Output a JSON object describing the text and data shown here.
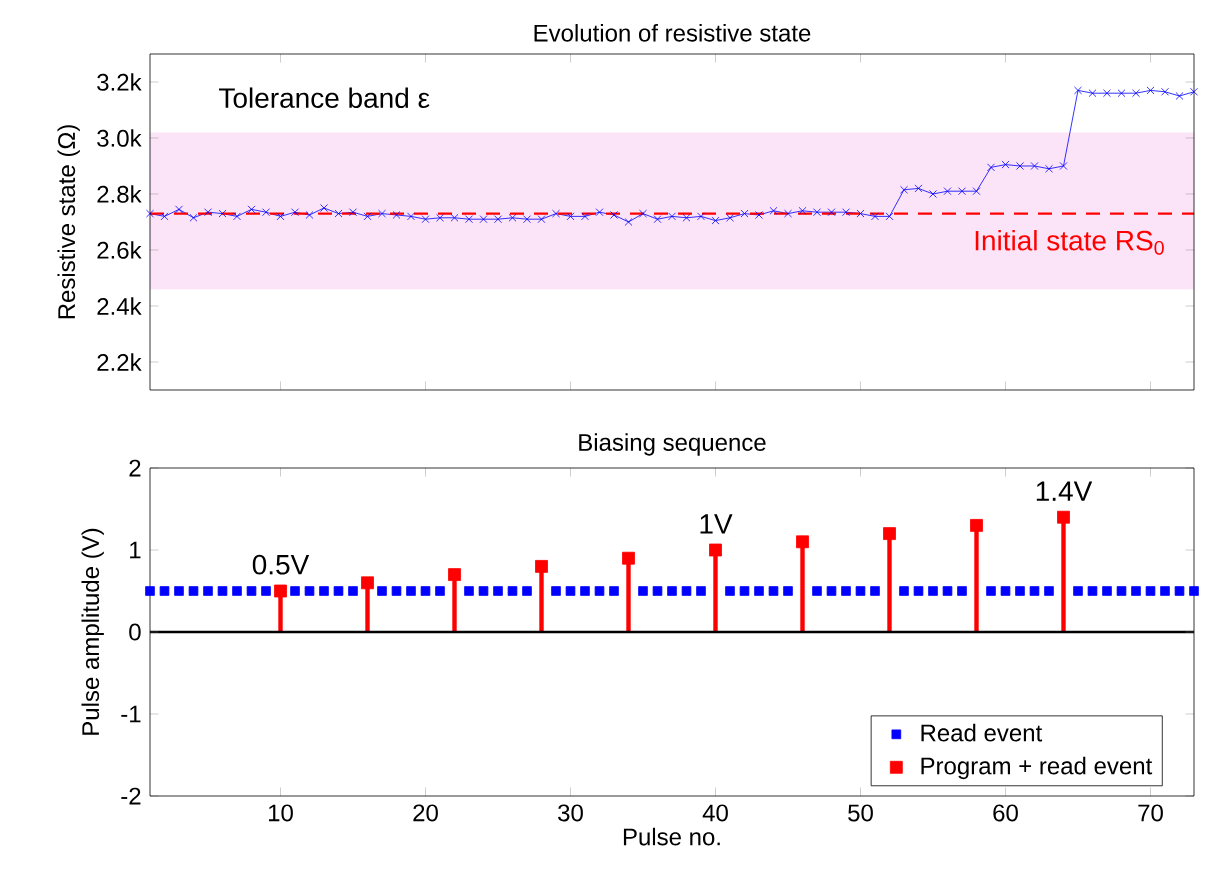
{
  "chart_data": [
    {
      "type": "line",
      "title": "Evolution of resistive state",
      "ylabel": "Resistive state (Ω)",
      "marker": "cross",
      "tick_labels": "y",
      "x": [
        1,
        2,
        3,
        4,
        5,
        6,
        7,
        8,
        9,
        10,
        11,
        12,
        13,
        14,
        15,
        16,
        17,
        18,
        19,
        20,
        21,
        22,
        23,
        24,
        25,
        26,
        27,
        28,
        29,
        30,
        31,
        32,
        33,
        34,
        35,
        36,
        37,
        38,
        39,
        40,
        41,
        42,
        43,
        44,
        45,
        46,
        47,
        48,
        49,
        50,
        51,
        52,
        53,
        54,
        55,
        56,
        57,
        58,
        59,
        60,
        61,
        62,
        63,
        64,
        65,
        66,
        67,
        68,
        69,
        70,
        71,
        72,
        73
      ],
      "series": [
        {
          "color": "#0000ff",
          "values": [
            2730,
            2720,
            2745,
            2715,
            2735,
            2730,
            2720,
            2745,
            2735,
            2720,
            2735,
            2725,
            2750,
            2730,
            2735,
            2720,
            2730,
            2725,
            2720,
            2710,
            2715,
            2715,
            2710,
            2710,
            2710,
            2715,
            2710,
            2710,
            2730,
            2720,
            2720,
            2735,
            2725,
            2700,
            2730,
            2710,
            2720,
            2715,
            2720,
            2705,
            2715,
            2730,
            2725,
            2740,
            2730,
            2740,
            2735,
            2735,
            2735,
            2730,
            2720,
            2720,
            2815,
            2820,
            2800,
            2810,
            2810,
            2810,
            2895,
            2905,
            2900,
            2900,
            2890,
            2900,
            3170,
            3160,
            3160,
            3160,
            3160,
            3170,
            3165,
            3150,
            3165
          ]
        }
      ],
      "xlim": [
        1,
        73
      ],
      "xticks": [
        10,
        20,
        30,
        40,
        50,
        60,
        70
      ],
      "ylim": [
        2100,
        3300
      ],
      "yticks": [
        {
          "value": 2200,
          "label": "2.2k"
        },
        {
          "value": 2400,
          "label": "2.4k"
        },
        {
          "value": 2600,
          "label": "2.6k"
        },
        {
          "value": 2800,
          "label": "2.8k"
        },
        {
          "value": 3000,
          "label": "3.0k"
        },
        {
          "value": 3200,
          "label": "3.2k"
        }
      ],
      "bands": [
        {
          "axis": "y",
          "from": 2460,
          "to": 3020,
          "label": "Tolerance band ε",
          "color": "#fce4f8"
        }
      ],
      "ref_lines": [
        {
          "axis": "y",
          "value": 2730,
          "label": "Initial state RS$_{0}$",
          "color": "#ff0000",
          "line_style": "dashed"
        }
      ]
    },
    {
      "type": "scatter",
      "title": "Biasing sequence",
      "xlabel": "Pulse no.",
      "ylabel": "Pulse amplitude (V)",
      "marker": "square",
      "legend": "bottom right",
      "series": [
        {
          "name": "Read event",
          "color": "#0000ff",
          "x": [
            1,
            2,
            3,
            4,
            5,
            6,
            7,
            8,
            9,
            11,
            12,
            13,
            14,
            15,
            17,
            18,
            19,
            20,
            21,
            23,
            24,
            25,
            26,
            27,
            29,
            30,
            31,
            32,
            33,
            35,
            36,
            37,
            38,
            39,
            41,
            42,
            43,
            44,
            45,
            47,
            48,
            49,
            50,
            51,
            53,
            54,
            55,
            56,
            57,
            59,
            60,
            61,
            62,
            63,
            65,
            66,
            67,
            68,
            69,
            70,
            71,
            72,
            73
          ],
          "values": [
            0.5,
            0.5,
            0.5,
            0.5,
            0.5,
            0.5,
            0.5,
            0.5,
            0.5,
            0.5,
            0.5,
            0.5,
            0.5,
            0.5,
            0.5,
            0.5,
            0.5,
            0.5,
            0.5,
            0.5,
            0.5,
            0.5,
            0.5,
            0.5,
            0.5,
            0.5,
            0.5,
            0.5,
            0.5,
            0.5,
            0.5,
            0.5,
            0.5,
            0.5,
            0.5,
            0.5,
            0.5,
            0.5,
            0.5,
            0.5,
            0.5,
            0.5,
            0.5,
            0.5,
            0.5,
            0.5,
            0.5,
            0.5,
            0.5,
            0.5,
            0.5,
            0.5,
            0.5,
            0.5,
            0.5,
            0.5,
            0.5,
            0.5,
            0.5,
            0.5,
            0.5,
            0.5,
            0.5
          ]
        },
        {
          "name": "Program + read event",
          "type": "lollipop",
          "color": "#ff0000",
          "x": [
            10,
            16,
            22,
            28,
            34,
            40,
            46,
            52,
            58,
            64
          ],
          "values": [
            0.5,
            0.6,
            0.7,
            0.8,
            0.9,
            1.0,
            1.1,
            1.2,
            1.3,
            1.4
          ]
        }
      ],
      "xlim": [
        1,
        73
      ],
      "xticks": [
        10,
        20,
        30,
        40,
        50,
        60,
        70
      ],
      "ylim": [
        -2,
        2
      ],
      "yticks": [
        -2,
        -1,
        0,
        1,
        2
      ],
      "ref_lines": [
        {
          "axis": "y",
          "value": 0,
          "color": "#000000",
          "line_style": "solid"
        }
      ],
      "annotations": [
        {
          "text": "0.5V",
          "x": 10,
          "y": 0.5
        },
        {
          "text": "1V",
          "x": 40,
          "y": 1.0
        },
        {
          "text": "1.4V",
          "x": 64,
          "y": 1.4
        }
      ]
    }
  ]
}
